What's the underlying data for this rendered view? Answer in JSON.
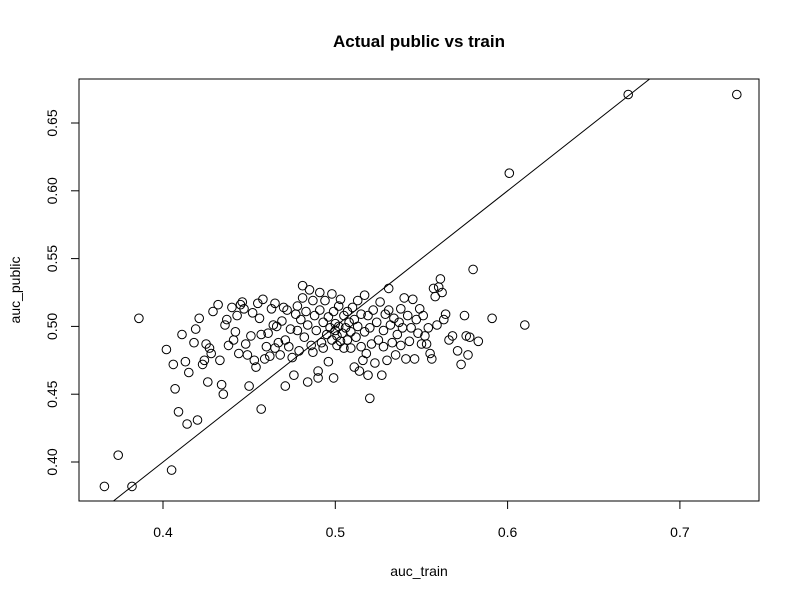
{
  "chart_data": {
    "type": "scatter",
    "title": "Actual public vs train",
    "xlabel": "auc_train",
    "ylabel": "auc_public",
    "xlim": [
      0.35,
      0.745
    ],
    "ylim": [
      0.372,
      0.685
    ],
    "x_ticks": [
      0.4,
      0.5,
      0.6,
      0.7
    ],
    "x_tick_labels": [
      "0.4",
      "0.5",
      "0.6",
      "0.7"
    ],
    "y_ticks": [
      0.4,
      0.45,
      0.5,
      0.55,
      0.6,
      0.65
    ],
    "y_tick_labels": [
      "0.40",
      "0.45",
      "0.50",
      "0.55",
      "0.60",
      "0.65"
    ],
    "grid": false,
    "legend": null,
    "marker": "open-circle",
    "reference_line": {
      "label": "y = x",
      "slope": 1,
      "intercept": 0
    },
    "points": [
      [
        0.366,
        0.382
      ],
      [
        0.374,
        0.405
      ],
      [
        0.382,
        0.382
      ],
      [
        0.386,
        0.506
      ],
      [
        0.402,
        0.483
      ],
      [
        0.405,
        0.394
      ],
      [
        0.406,
        0.472
      ],
      [
        0.407,
        0.454
      ],
      [
        0.409,
        0.437
      ],
      [
        0.411,
        0.494
      ],
      [
        0.413,
        0.474
      ],
      [
        0.414,
        0.428
      ],
      [
        0.415,
        0.466
      ],
      [
        0.418,
        0.488
      ],
      [
        0.419,
        0.498
      ],
      [
        0.42,
        0.431
      ],
      [
        0.421,
        0.506
      ],
      [
        0.423,
        0.472
      ],
      [
        0.424,
        0.475
      ],
      [
        0.425,
        0.487
      ],
      [
        0.426,
        0.459
      ],
      [
        0.427,
        0.484
      ],
      [
        0.428,
        0.48
      ],
      [
        0.429,
        0.511
      ],
      [
        0.432,
        0.516
      ],
      [
        0.433,
        0.475
      ],
      [
        0.434,
        0.457
      ],
      [
        0.435,
        0.45
      ],
      [
        0.436,
        0.501
      ],
      [
        0.437,
        0.505
      ],
      [
        0.438,
        0.486
      ],
      [
        0.44,
        0.514
      ],
      [
        0.441,
        0.49
      ],
      [
        0.442,
        0.496
      ],
      [
        0.443,
        0.508
      ],
      [
        0.444,
        0.48
      ],
      [
        0.445,
        0.516
      ],
      [
        0.446,
        0.518
      ],
      [
        0.447,
        0.513
      ],
      [
        0.448,
        0.487
      ],
      [
        0.449,
        0.479
      ],
      [
        0.45,
        0.456
      ],
      [
        0.451,
        0.493
      ],
      [
        0.452,
        0.51
      ],
      [
        0.453,
        0.475
      ],
      [
        0.454,
        0.47
      ],
      [
        0.455,
        0.517
      ],
      [
        0.456,
        0.506
      ],
      [
        0.457,
        0.494
      ],
      [
        0.457,
        0.439
      ],
      [
        0.458,
        0.52
      ],
      [
        0.459,
        0.476
      ],
      [
        0.46,
        0.485
      ],
      [
        0.461,
        0.495
      ],
      [
        0.462,
        0.478
      ],
      [
        0.463,
        0.513
      ],
      [
        0.464,
        0.501
      ],
      [
        0.465,
        0.517
      ],
      [
        0.465,
        0.484
      ],
      [
        0.466,
        0.5
      ],
      [
        0.467,
        0.488
      ],
      [
        0.468,
        0.479
      ],
      [
        0.469,
        0.504
      ],
      [
        0.47,
        0.514
      ],
      [
        0.471,
        0.49
      ],
      [
        0.471,
        0.456
      ],
      [
        0.472,
        0.512
      ],
      [
        0.473,
        0.485
      ],
      [
        0.474,
        0.498
      ],
      [
        0.475,
        0.477
      ],
      [
        0.476,
        0.464
      ],
      [
        0.477,
        0.509
      ],
      [
        0.478,
        0.497
      ],
      [
        0.478,
        0.515
      ],
      [
        0.479,
        0.482
      ],
      [
        0.48,
        0.505
      ],
      [
        0.481,
        0.53
      ],
      [
        0.481,
        0.521
      ],
      [
        0.482,
        0.492
      ],
      [
        0.483,
        0.511
      ],
      [
        0.484,
        0.501
      ],
      [
        0.484,
        0.459
      ],
      [
        0.485,
        0.527
      ],
      [
        0.486,
        0.486
      ],
      [
        0.487,
        0.519
      ],
      [
        0.487,
        0.481
      ],
      [
        0.488,
        0.508
      ],
      [
        0.489,
        0.497
      ],
      [
        0.49,
        0.467
      ],
      [
        0.49,
        0.462
      ],
      [
        0.491,
        0.512
      ],
      [
        0.491,
        0.525
      ],
      [
        0.492,
        0.488
      ],
      [
        0.493,
        0.503
      ],
      [
        0.493,
        0.484
      ],
      [
        0.494,
        0.519
      ],
      [
        0.495,
        0.494
      ],
      [
        0.496,
        0.507
      ],
      [
        0.496,
        0.474
      ],
      [
        0.497,
        0.499
      ],
      [
        0.498,
        0.49
      ],
      [
        0.498,
        0.524
      ],
      [
        0.499,
        0.462
      ],
      [
        0.499,
        0.511
      ],
      [
        0.5,
        0.497
      ],
      [
        0.5,
        0.502
      ],
      [
        0.501,
        0.486
      ],
      [
        0.501,
        0.493
      ],
      [
        0.502,
        0.515
      ],
      [
        0.502,
        0.5
      ],
      [
        0.503,
        0.489
      ],
      [
        0.503,
        0.52
      ],
      [
        0.504,
        0.495
      ],
      [
        0.505,
        0.508
      ],
      [
        0.505,
        0.484
      ],
      [
        0.506,
        0.499
      ],
      [
        0.507,
        0.511
      ],
      [
        0.507,
        0.49
      ],
      [
        0.508,
        0.503
      ],
      [
        0.509,
        0.496
      ],
      [
        0.509,
        0.484
      ],
      [
        0.51,
        0.514
      ],
      [
        0.511,
        0.505
      ],
      [
        0.511,
        0.47
      ],
      [
        0.512,
        0.492
      ],
      [
        0.513,
        0.5
      ],
      [
        0.513,
        0.519
      ],
      [
        0.514,
        0.467
      ],
      [
        0.515,
        0.485
      ],
      [
        0.515,
        0.509
      ],
      [
        0.516,
        0.475
      ],
      [
        0.517,
        0.496
      ],
      [
        0.517,
        0.523
      ],
      [
        0.518,
        0.48
      ],
      [
        0.519,
        0.508
      ],
      [
        0.519,
        0.464
      ],
      [
        0.52,
        0.447
      ],
      [
        0.52,
        0.499
      ],
      [
        0.521,
        0.487
      ],
      [
        0.522,
        0.512
      ],
      [
        0.523,
        0.473
      ],
      [
        0.524,
        0.503
      ],
      [
        0.525,
        0.49
      ],
      [
        0.526,
        0.518
      ],
      [
        0.527,
        0.464
      ],
      [
        0.528,
        0.497
      ],
      [
        0.528,
        0.485
      ],
      [
        0.529,
        0.509
      ],
      [
        0.53,
        0.475
      ],
      [
        0.531,
        0.512
      ],
      [
        0.531,
        0.528
      ],
      [
        0.532,
        0.501
      ],
      [
        0.533,
        0.488
      ],
      [
        0.534,
        0.506
      ],
      [
        0.535,
        0.479
      ],
      [
        0.536,
        0.494
      ],
      [
        0.537,
        0.503
      ],
      [
        0.538,
        0.513
      ],
      [
        0.538,
        0.486
      ],
      [
        0.539,
        0.499
      ],
      [
        0.54,
        0.521
      ],
      [
        0.541,
        0.476
      ],
      [
        0.542,
        0.508
      ],
      [
        0.543,
        0.489
      ],
      [
        0.544,
        0.499
      ],
      [
        0.545,
        0.52
      ],
      [
        0.546,
        0.476
      ],
      [
        0.547,
        0.505
      ],
      [
        0.548,
        0.495
      ],
      [
        0.549,
        0.513
      ],
      [
        0.55,
        0.487
      ],
      [
        0.551,
        0.508
      ],
      [
        0.552,
        0.493
      ],
      [
        0.553,
        0.487
      ],
      [
        0.554,
        0.499
      ],
      [
        0.555,
        0.48
      ],
      [
        0.556,
        0.476
      ],
      [
        0.557,
        0.528
      ],
      [
        0.558,
        0.522
      ],
      [
        0.559,
        0.501
      ],
      [
        0.56,
        0.529
      ],
      [
        0.561,
        0.535
      ],
      [
        0.562,
        0.525
      ],
      [
        0.563,
        0.505
      ],
      [
        0.564,
        0.509
      ],
      [
        0.566,
        0.49
      ],
      [
        0.568,
        0.493
      ],
      [
        0.571,
        0.482
      ],
      [
        0.573,
        0.472
      ],
      [
        0.575,
        0.508
      ],
      [
        0.576,
        0.493
      ],
      [
        0.577,
        0.479
      ],
      [
        0.578,
        0.492
      ],
      [
        0.58,
        0.542
      ],
      [
        0.583,
        0.489
      ],
      [
        0.591,
        0.506
      ],
      [
        0.601,
        0.613
      ],
      [
        0.61,
        0.501
      ],
      [
        0.67,
        0.671
      ],
      [
        0.733,
        0.671
      ]
    ]
  }
}
